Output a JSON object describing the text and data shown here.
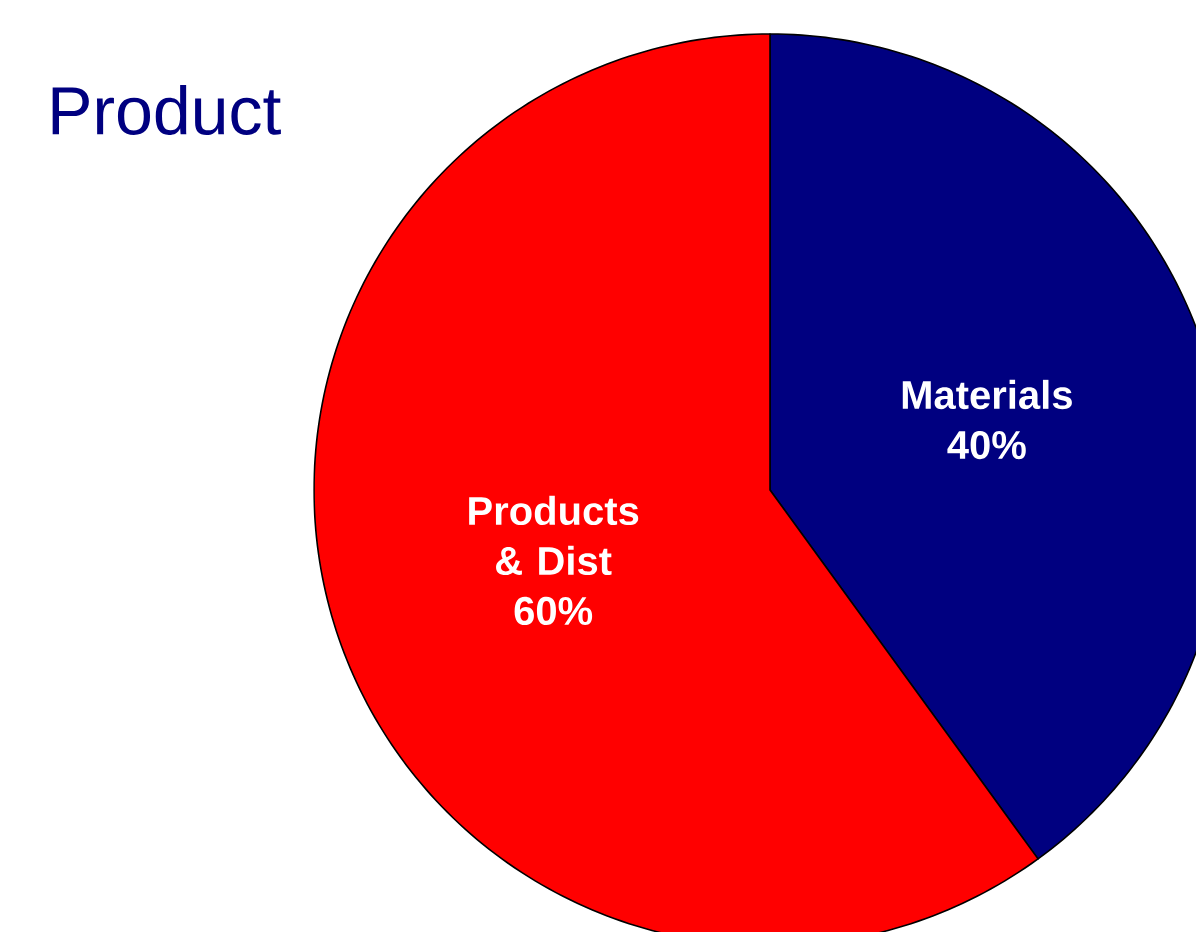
{
  "chart_data": {
    "type": "pie",
    "title": "Product",
    "categories": [
      "Materials",
      "Products & Dist"
    ],
    "values": [
      40,
      60
    ],
    "value_labels": [
      "40%",
      "60%"
    ],
    "colors": [
      "#000080",
      "#ff0000"
    ]
  }
}
